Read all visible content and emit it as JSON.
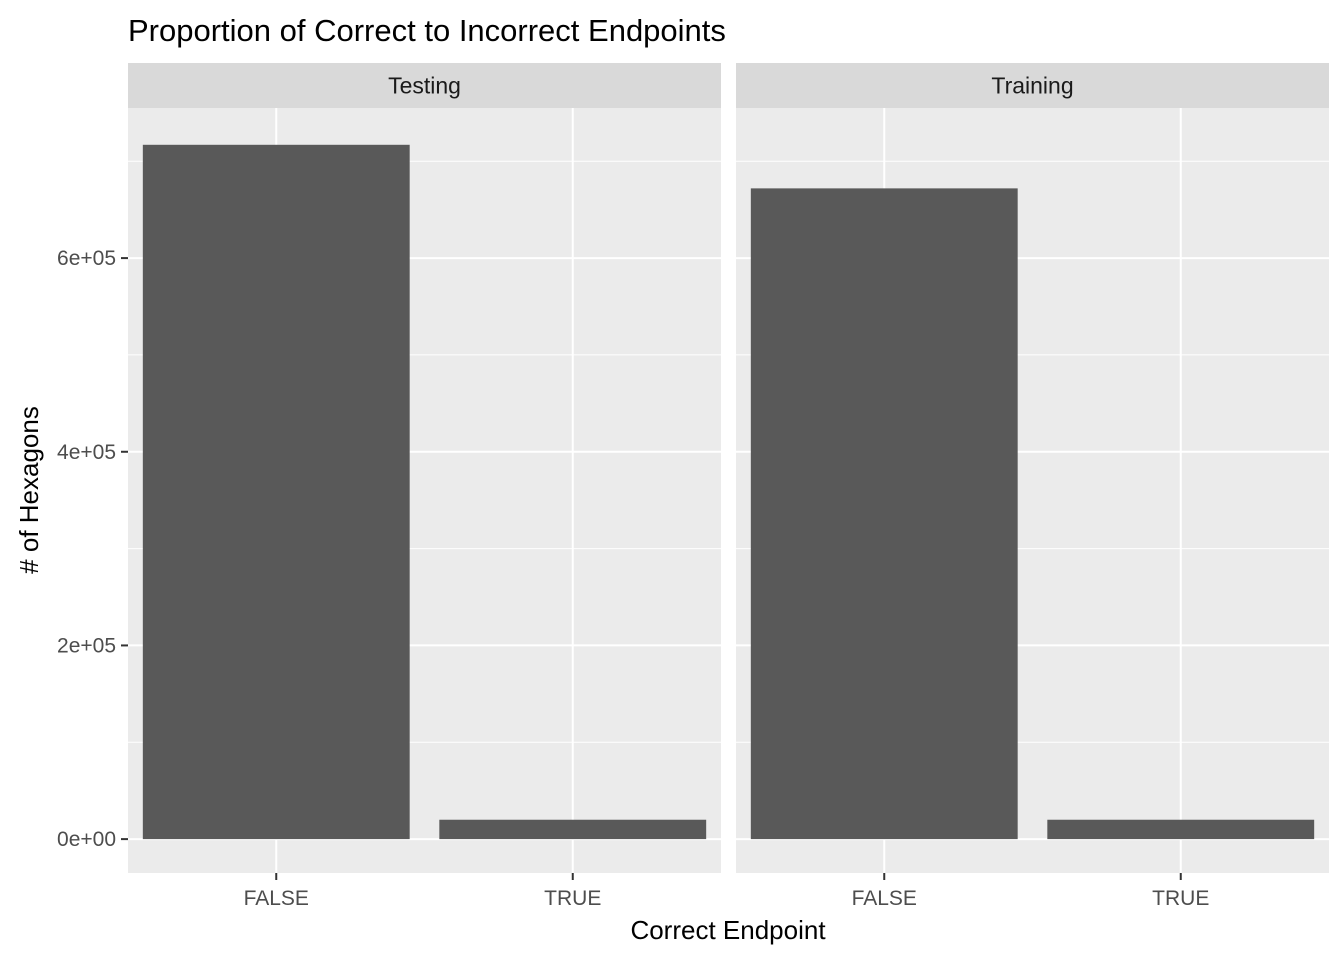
{
  "chart_data": {
    "type": "bar",
    "title": "Proportion of Correct to Incorrect Endpoints",
    "xlabel": "Correct Endpoint",
    "ylabel": "# of Hexagons",
    "categories": [
      "FALSE",
      "TRUE"
    ],
    "ylim": [
      -35000,
      755000
    ],
    "yticks": [
      0,
      200000,
      400000,
      600000
    ],
    "ytick_labels": [
      "0e+00",
      "2e+05",
      "4e+05",
      "6e+05"
    ],
    "grid": true,
    "legend": "none",
    "colors": {
      "bar": "#595959",
      "panel": "#ebebeb",
      "strip": "#d9d9d9",
      "grid": "#ffffff"
    },
    "facets": [
      {
        "name": "Testing",
        "values": [
          717000,
          20000
        ]
      },
      {
        "name": "Training",
        "values": [
          672000,
          20000
        ]
      }
    ]
  }
}
